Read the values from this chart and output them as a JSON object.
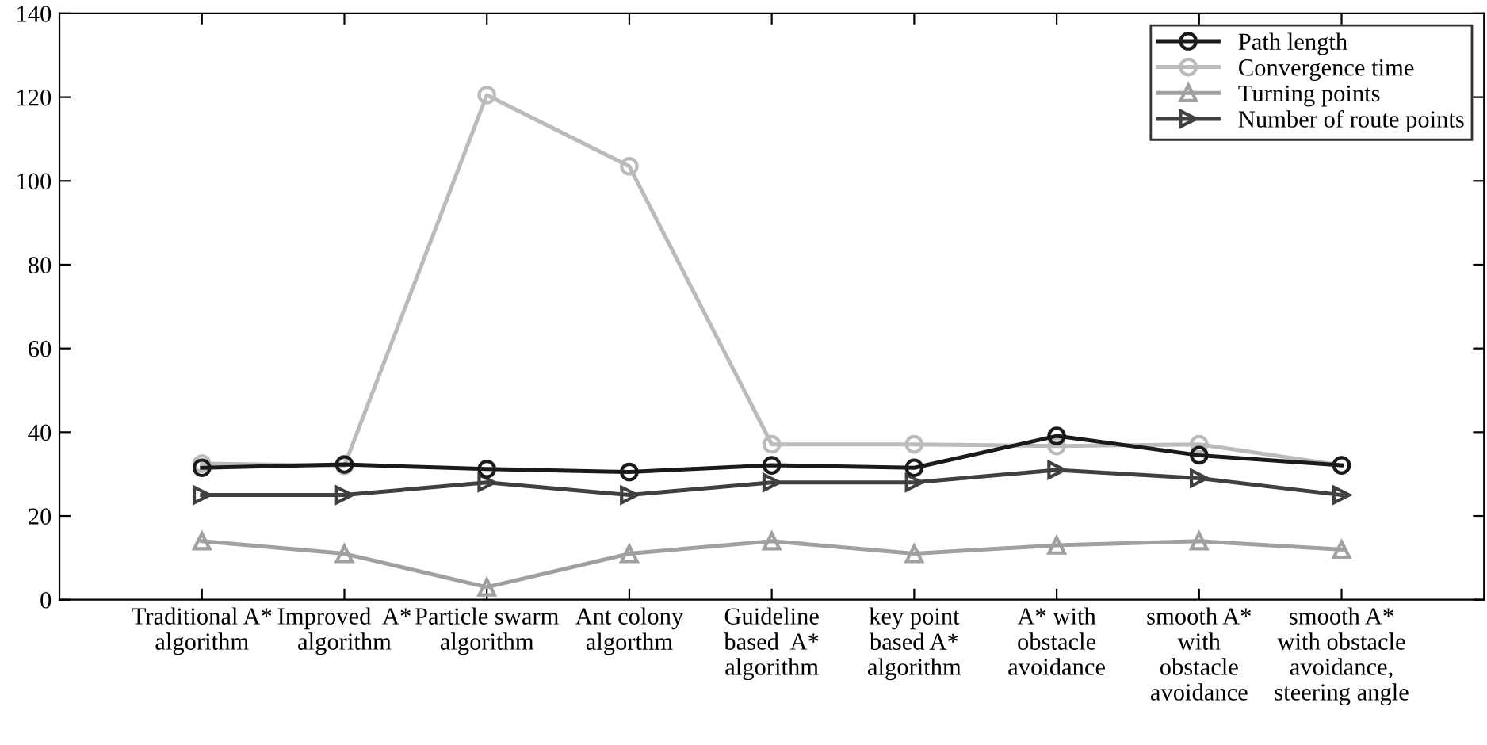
{
  "chart_data": {
    "type": "line",
    "categories": [
      "Traditional A*\nalgorithm",
      "Improved  A*\nalgorithm",
      "Particle swarm\nalgorithm",
      "Ant colony\nalgorthm",
      "Guideline\nbased  A*\nalgorithm",
      "key point\nbased A*\nalgorithm",
      "A* with\nobstacle\navoidance",
      "smooth A*\nwith\nobstacle\navoidance",
      "smooth A*\nwith obstacle\navoidance,\nsteering angle"
    ],
    "series": [
      {
        "name": "Path length",
        "color": "#1a1a1a",
        "marker": "circle",
        "values": [
          31.5,
          32.3,
          31.2,
          30.5,
          32.1,
          31.5,
          39.1,
          34.5,
          32.1
        ]
      },
      {
        "name": "Convergence time",
        "color": "#bbbbbb",
        "marker": "circle",
        "values": [
          32.5,
          32,
          120.5,
          103.5,
          37.1,
          37.1,
          36.7,
          37.1,
          32.1
        ]
      },
      {
        "name": "Turning points",
        "color": "#a0a0a0",
        "marker": "triangle",
        "values": [
          14,
          11,
          3,
          11,
          14,
          11,
          13,
          14,
          12
        ]
      },
      {
        "name": "Number of route points",
        "color": "#404040",
        "marker": "triangle-right",
        "values": [
          25,
          25,
          28,
          25,
          28,
          28,
          31,
          29,
          25
        ]
      }
    ],
    "ylim": [
      0,
      140
    ],
    "yticks": [
      0,
      20,
      40,
      60,
      80,
      100,
      120,
      140
    ],
    "grid": false,
    "legend": "top right",
    "line_style": "solid"
  }
}
